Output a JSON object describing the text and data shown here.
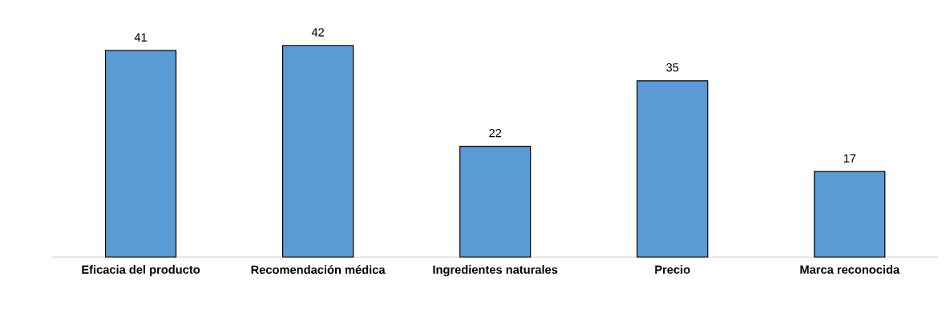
{
  "chart_data": {
    "type": "bar",
    "categories": [
      "Eficacia del producto",
      "Recomendación médica",
      "Ingredientes naturales",
      "Precio",
      "Marca reconocida"
    ],
    "values": [
      41,
      42,
      22,
      35,
      17
    ],
    "color": "#5b9bd5",
    "data_labels": true
  }
}
